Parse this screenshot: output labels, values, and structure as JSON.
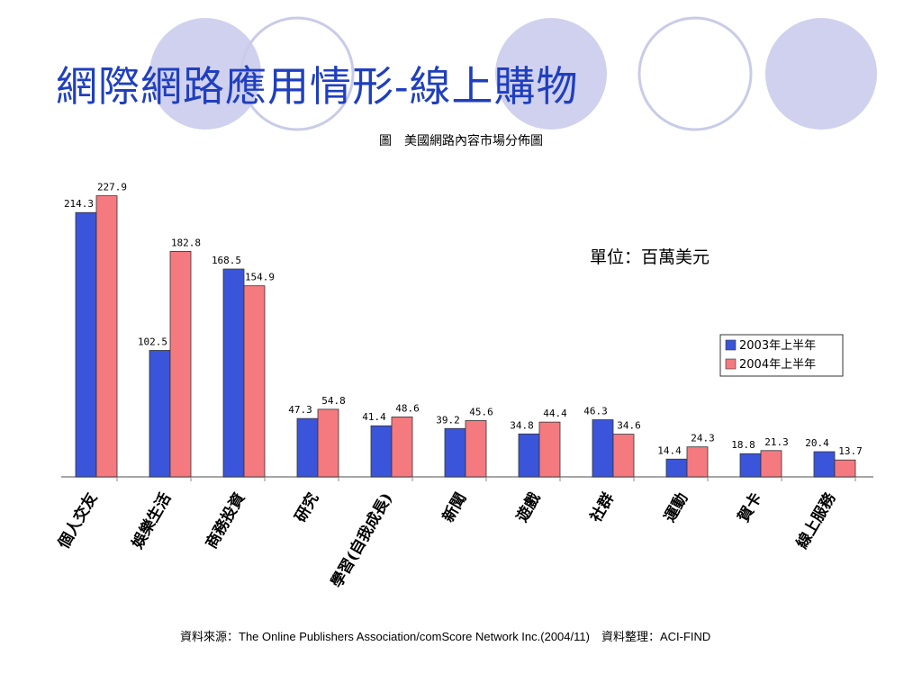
{
  "slide": {
    "title": "網際網路應用情形-線上購物",
    "subtitle": "圖　美國網路內容市場分佈圖",
    "footer": "資料來源：The Online Publishers Association/comScore Network Inc.(2004/11)　資料整理：ACI-FIND"
  },
  "colors": {
    "title": "#1f3fbf",
    "circle_fill": "#cfd1ee",
    "circle_stroke": "#c9cbe9"
  },
  "chart_data": {
    "type": "bar",
    "unit_label": "單位：百萬美元",
    "categories": [
      "個人交友",
      "娛樂生活",
      "商務投資",
      "研究",
      "學習(自我成長)",
      "新聞",
      "遊戲",
      "社群",
      "運動",
      "賀卡",
      "線上服務"
    ],
    "series": [
      {
        "name": "2003年上半年",
        "color": "#3a55d9",
        "values": [
          214.3,
          102.5,
          168.5,
          47.3,
          41.4,
          39.2,
          34.8,
          46.3,
          14.4,
          18.8,
          20.4
        ]
      },
      {
        "name": "2004年上半年",
        "color": "#f47a80",
        "values": [
          227.9,
          182.8,
          154.9,
          54.8,
          48.6,
          45.6,
          44.4,
          34.6,
          24.3,
          21.3,
          13.7
        ]
      }
    ],
    "ylim": [
      0,
      240
    ],
    "grid": false,
    "legend_position": "right"
  }
}
